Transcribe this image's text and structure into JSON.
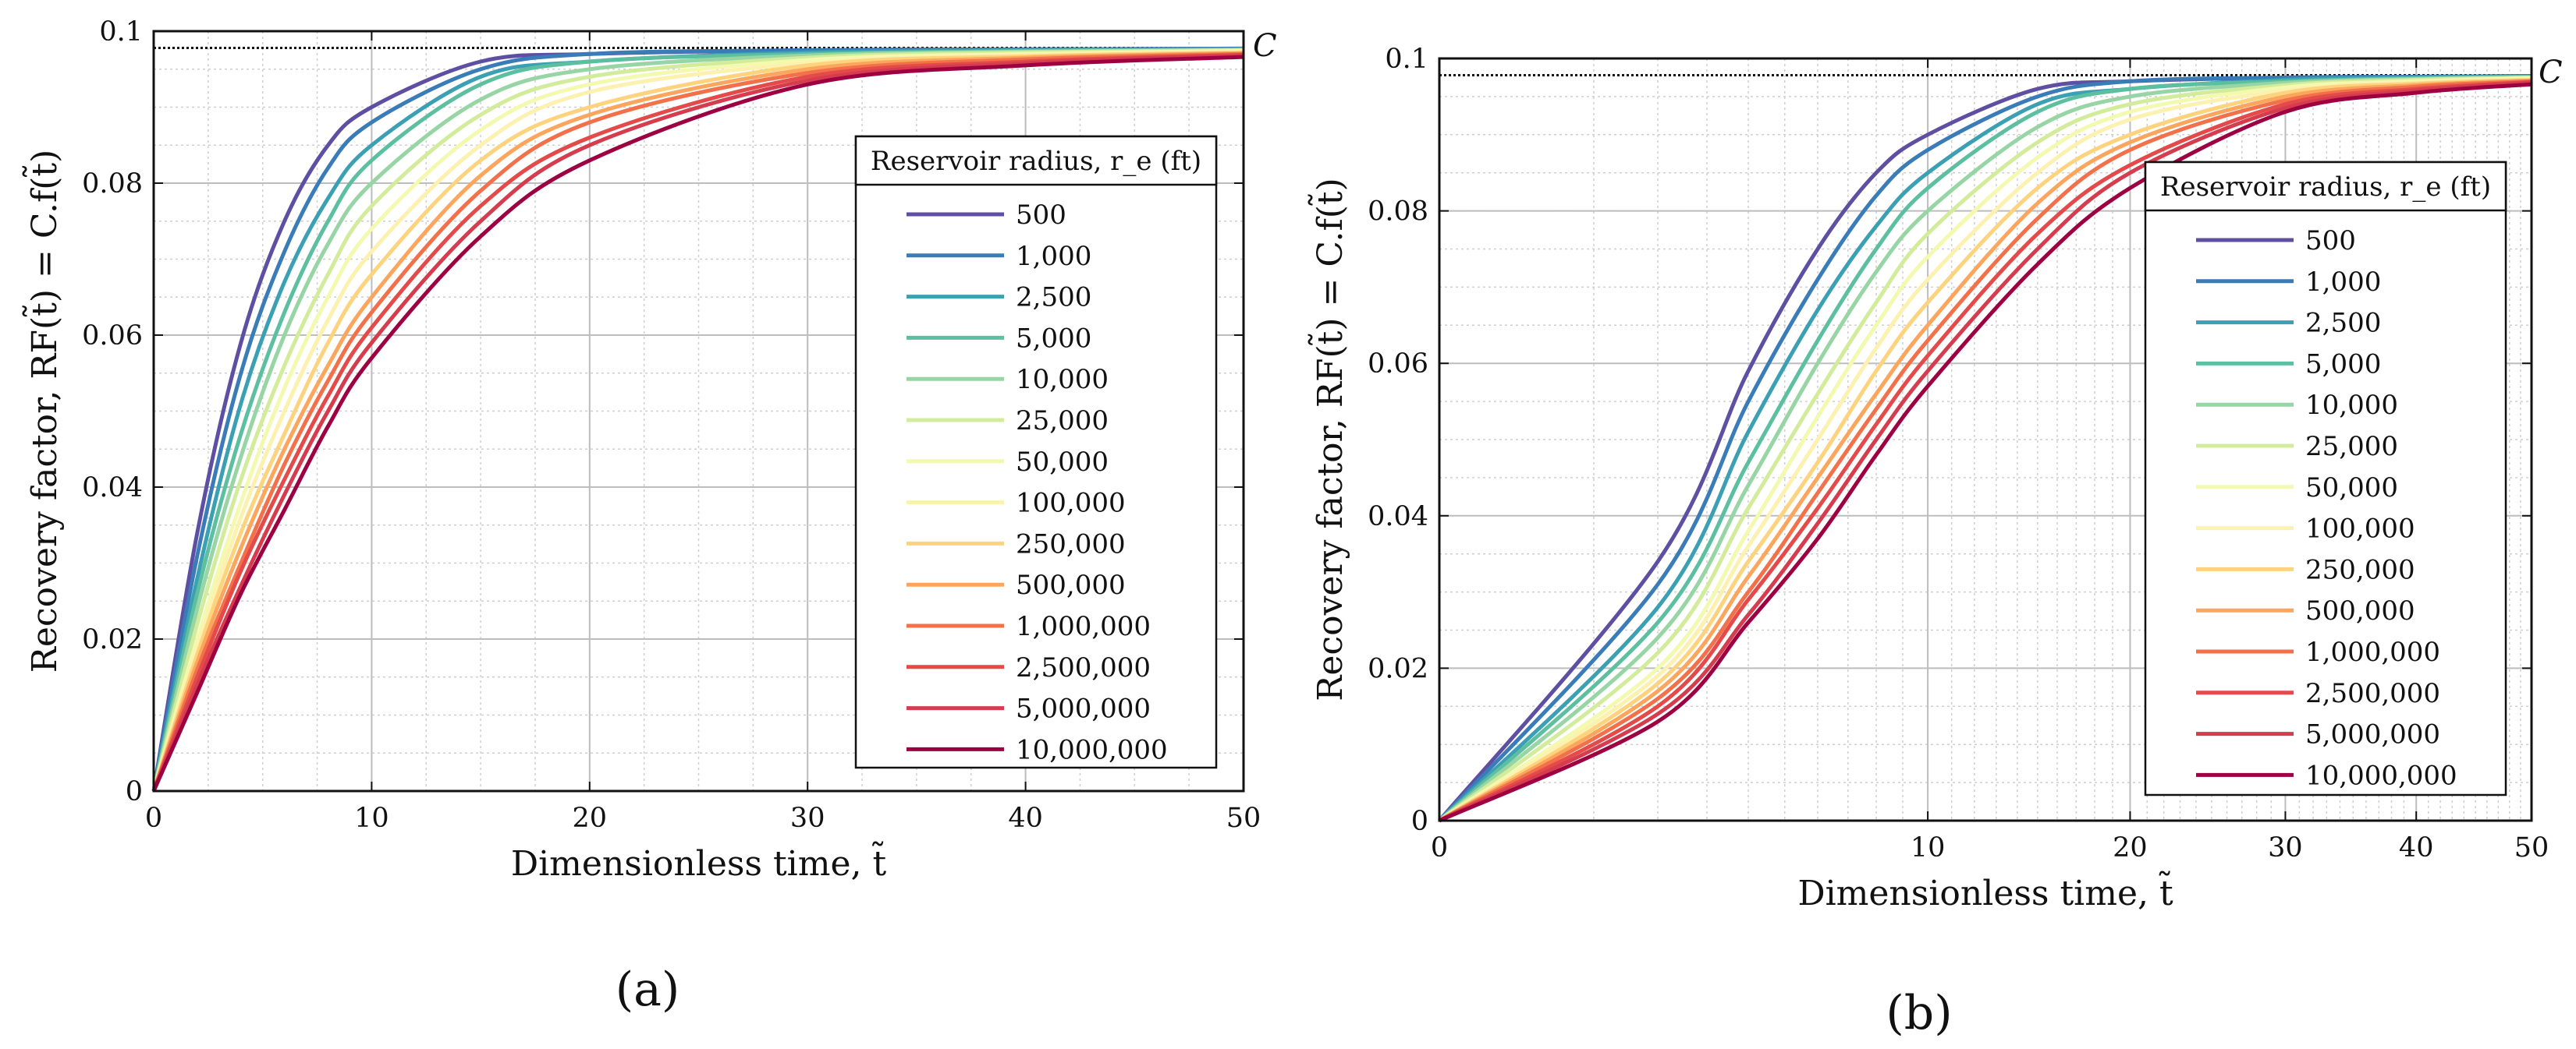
{
  "chart_data": [
    {
      "panel": "a",
      "type": "line",
      "xscale": "linear",
      "xlabel": "Dimensionless time, t̃",
      "ylabel": "Recovery factor, RF(t̃) = C.f(t̃)",
      "xlim": [
        0,
        50
      ],
      "ylim": [
        0,
        0.1
      ],
      "xticks": [
        0,
        10,
        20,
        30,
        40,
        50
      ],
      "xtick_labels": [
        "0",
        "10",
        "20",
        "30",
        "40",
        "50"
      ],
      "yticks": [
        0,
        0.02,
        0.04,
        0.06,
        0.08,
        0.1
      ],
      "ytick_labels": [
        "0",
        "0.02",
        "0.04",
        "0.06",
        "0.08",
        "0.1"
      ],
      "asymptote": {
        "label": "C",
        "value": 0.0978
      },
      "legend_title": "Reservoir radius, r_e (ft)",
      "legend_loc": "right",
      "grid": true,
      "series": [
        {
          "name": "500",
          "color": "#5e4fa2",
          "x": [
            0,
            2,
            4,
            6,
            8,
            10,
            15,
            20,
            30,
            40,
            50
          ],
          "values": [
            0,
            0.034,
            0.059,
            0.075,
            0.085,
            0.09,
            0.096,
            0.097,
            0.0975,
            0.0976,
            0.0977
          ]
        },
        {
          "name": "1,000",
          "color": "#3a7cb8",
          "x": [
            0,
            2,
            4,
            6,
            8,
            10,
            15,
            20,
            30,
            40,
            50
          ],
          "values": [
            0,
            0.031,
            0.055,
            0.071,
            0.082,
            0.088,
            0.095,
            0.097,
            0.0975,
            0.0976,
            0.0977
          ]
        },
        {
          "name": "2,500",
          "color": "#3ba0b3",
          "x": [
            0,
            2,
            4,
            6,
            8,
            10,
            15,
            20,
            30,
            40,
            50
          ],
          "values": [
            0,
            0.028,
            0.051,
            0.067,
            0.078,
            0.085,
            0.094,
            0.096,
            0.0972,
            0.0975,
            0.0976
          ]
        },
        {
          "name": "5,000",
          "color": "#5cbfa0",
          "x": [
            0,
            2,
            4,
            6,
            8,
            10,
            15,
            20,
            30,
            40,
            50
          ],
          "values": [
            0,
            0.026,
            0.047,
            0.063,
            0.075,
            0.083,
            0.093,
            0.096,
            0.097,
            0.0974,
            0.0976
          ]
        },
        {
          "name": "10,000",
          "color": "#97d5a4",
          "x": [
            0,
            2,
            4,
            6,
            8,
            10,
            15,
            20,
            30,
            40,
            50
          ],
          "values": [
            0,
            0.024,
            0.044,
            0.06,
            0.072,
            0.08,
            0.091,
            0.095,
            0.0968,
            0.0973,
            0.0975
          ]
        },
        {
          "name": "25,000",
          "color": "#d3ec9c",
          "x": [
            0,
            2,
            4,
            6,
            8,
            10,
            15,
            20,
            30,
            40,
            50
          ],
          "values": [
            0,
            0.022,
            0.041,
            0.056,
            0.068,
            0.077,
            0.089,
            0.094,
            0.0965,
            0.0972,
            0.0975
          ]
        },
        {
          "name": "50,000",
          "color": "#f4f9b0",
          "x": [
            0,
            2,
            4,
            6,
            8,
            10,
            15,
            20,
            30,
            40,
            50
          ],
          "values": [
            0,
            0.02,
            0.038,
            0.053,
            0.065,
            0.074,
            0.087,
            0.093,
            0.0962,
            0.097,
            0.0974
          ]
        },
        {
          "name": "100,000",
          "color": "#fdf1b0",
          "x": [
            0,
            2,
            4,
            6,
            8,
            10,
            15,
            20,
            30,
            40,
            50
          ],
          "values": [
            0,
            0.019,
            0.036,
            0.05,
            0.062,
            0.071,
            0.085,
            0.092,
            0.0958,
            0.0969,
            0.0973
          ]
        },
        {
          "name": "250,000",
          "color": "#fdd37e",
          "x": [
            0,
            2,
            4,
            6,
            8,
            10,
            15,
            20,
            30,
            40,
            50
          ],
          "values": [
            0,
            0.018,
            0.034,
            0.047,
            0.059,
            0.068,
            0.083,
            0.09,
            0.0955,
            0.0967,
            0.0972
          ]
        },
        {
          "name": "500,000",
          "color": "#fca55d",
          "x": [
            0,
            2,
            4,
            6,
            8,
            10,
            15,
            20,
            30,
            40,
            50
          ],
          "values": [
            0,
            0.017,
            0.032,
            0.045,
            0.056,
            0.065,
            0.081,
            0.089,
            0.095,
            0.0965,
            0.0971
          ]
        },
        {
          "name": "1,000,000",
          "color": "#f2704a",
          "x": [
            0,
            2,
            4,
            6,
            8,
            10,
            15,
            20,
            30,
            40,
            50
          ],
          "values": [
            0,
            0.016,
            0.03,
            0.043,
            0.054,
            0.063,
            0.079,
            0.088,
            0.0945,
            0.0963,
            0.097
          ]
        },
        {
          "name": "2,500,000",
          "color": "#e34a49",
          "x": [
            0,
            2,
            4,
            6,
            8,
            10,
            15,
            20,
            30,
            40,
            50
          ],
          "values": [
            0,
            0.015,
            0.029,
            0.041,
            0.052,
            0.061,
            0.077,
            0.086,
            0.094,
            0.096,
            0.0969
          ]
        },
        {
          "name": "5,000,000",
          "color": "#d53c4e",
          "x": [
            0,
            2,
            4,
            6,
            8,
            10,
            15,
            20,
            30,
            40,
            50
          ],
          "values": [
            0,
            0.014,
            0.027,
            0.039,
            0.05,
            0.059,
            0.075,
            0.085,
            0.0935,
            0.0958,
            0.0968
          ]
        },
        {
          "name": "10,000,000",
          "color": "#9e0142",
          "x": [
            0,
            2,
            4,
            6,
            8,
            10,
            15,
            20,
            30,
            40,
            50
          ],
          "values": [
            0,
            0.013,
            0.026,
            0.037,
            0.048,
            0.057,
            0.073,
            0.083,
            0.093,
            0.0955,
            0.0966
          ]
        }
      ]
    },
    {
      "panel": "b",
      "type": "line",
      "xscale": "sqrt",
      "xlabel": "Dimensionless time, t̃",
      "ylabel": "Recovery factor, RF(t̃) = C.f(t̃)",
      "xlim": [
        0,
        50
      ],
      "ylim": [
        0,
        0.1
      ],
      "xticks": [
        0,
        10,
        20,
        30,
        40,
        50
      ],
      "xtick_labels": [
        "0",
        "10",
        "20",
        "30",
        "40",
        "50"
      ],
      "yticks": [
        0,
        0.02,
        0.04,
        0.06,
        0.08,
        0.1
      ],
      "ytick_labels": [
        "0",
        "0.02",
        "0.04",
        "0.06",
        "0.08",
        "0.1"
      ],
      "asymptote": {
        "label": "C",
        "value": 0.0978
      },
      "legend_title": "Reservoir radius, r_e (ft)",
      "legend_loc": "right",
      "grid": true,
      "series": [
        {
          "name": "500",
          "color": "#5e4fa2",
          "x": [
            0,
            2,
            4,
            6,
            8,
            10,
            15,
            20,
            30,
            40,
            50
          ],
          "values": [
            0,
            0.034,
            0.059,
            0.075,
            0.085,
            0.09,
            0.096,
            0.097,
            0.0975,
            0.0976,
            0.0977
          ]
        },
        {
          "name": "1,000",
          "color": "#3a7cb8",
          "x": [
            0,
            2,
            4,
            6,
            8,
            10,
            15,
            20,
            30,
            40,
            50
          ],
          "values": [
            0,
            0.031,
            0.055,
            0.071,
            0.082,
            0.088,
            0.095,
            0.097,
            0.0975,
            0.0976,
            0.0977
          ]
        },
        {
          "name": "2,500",
          "color": "#3ba0b3",
          "x": [
            0,
            2,
            4,
            6,
            8,
            10,
            15,
            20,
            30,
            40,
            50
          ],
          "values": [
            0,
            0.028,
            0.051,
            0.067,
            0.078,
            0.085,
            0.094,
            0.096,
            0.0972,
            0.0975,
            0.0976
          ]
        },
        {
          "name": "5,000",
          "color": "#5cbfa0",
          "x": [
            0,
            2,
            4,
            6,
            8,
            10,
            15,
            20,
            30,
            40,
            50
          ],
          "values": [
            0,
            0.026,
            0.047,
            0.063,
            0.075,
            0.083,
            0.093,
            0.096,
            0.097,
            0.0974,
            0.0976
          ]
        },
        {
          "name": "10,000",
          "color": "#97d5a4",
          "x": [
            0,
            2,
            4,
            6,
            8,
            10,
            15,
            20,
            30,
            40,
            50
          ],
          "values": [
            0,
            0.024,
            0.044,
            0.06,
            0.072,
            0.08,
            0.091,
            0.095,
            0.0968,
            0.0973,
            0.0975
          ]
        },
        {
          "name": "25,000",
          "color": "#d3ec9c",
          "x": [
            0,
            2,
            4,
            6,
            8,
            10,
            15,
            20,
            30,
            40,
            50
          ],
          "values": [
            0,
            0.022,
            0.041,
            0.056,
            0.068,
            0.077,
            0.089,
            0.094,
            0.0965,
            0.0972,
            0.0975
          ]
        },
        {
          "name": "50,000",
          "color": "#f4f9b0",
          "x": [
            0,
            2,
            4,
            6,
            8,
            10,
            15,
            20,
            30,
            40,
            50
          ],
          "values": [
            0,
            0.02,
            0.038,
            0.053,
            0.065,
            0.074,
            0.087,
            0.093,
            0.0962,
            0.097,
            0.0974
          ]
        },
        {
          "name": "100,000",
          "color": "#fdf1b0",
          "x": [
            0,
            2,
            4,
            6,
            8,
            10,
            15,
            20,
            30,
            40,
            50
          ],
          "values": [
            0,
            0.019,
            0.036,
            0.05,
            0.062,
            0.071,
            0.085,
            0.092,
            0.0958,
            0.0969,
            0.0973
          ]
        },
        {
          "name": "250,000",
          "color": "#fdd37e",
          "x": [
            0,
            2,
            4,
            6,
            8,
            10,
            15,
            20,
            30,
            40,
            50
          ],
          "values": [
            0,
            0.018,
            0.034,
            0.047,
            0.059,
            0.068,
            0.083,
            0.09,
            0.0955,
            0.0967,
            0.0972
          ]
        },
        {
          "name": "500,000",
          "color": "#fca55d",
          "x": [
            0,
            2,
            4,
            6,
            8,
            10,
            15,
            20,
            30,
            40,
            50
          ],
          "values": [
            0,
            0.017,
            0.032,
            0.045,
            0.056,
            0.065,
            0.081,
            0.089,
            0.095,
            0.0965,
            0.0971
          ]
        },
        {
          "name": "1,000,000",
          "color": "#f2704a",
          "x": [
            0,
            2,
            4,
            6,
            8,
            10,
            15,
            20,
            30,
            40,
            50
          ],
          "values": [
            0,
            0.016,
            0.03,
            0.043,
            0.054,
            0.063,
            0.079,
            0.088,
            0.0945,
            0.0963,
            0.097
          ]
        },
        {
          "name": "2,500,000",
          "color": "#e34a49",
          "x": [
            0,
            2,
            4,
            6,
            8,
            10,
            15,
            20,
            30,
            40,
            50
          ],
          "values": [
            0,
            0.015,
            0.029,
            0.041,
            0.052,
            0.061,
            0.077,
            0.086,
            0.094,
            0.096,
            0.0969
          ]
        },
        {
          "name": "5,000,000",
          "color": "#d53c4e",
          "x": [
            0,
            2,
            4,
            6,
            8,
            10,
            15,
            20,
            30,
            40,
            50
          ],
          "values": [
            0,
            0.014,
            0.027,
            0.039,
            0.05,
            0.059,
            0.075,
            0.085,
            0.0935,
            0.0958,
            0.0968
          ]
        },
        {
          "name": "10,000,000",
          "color": "#9e0142",
          "x": [
            0,
            2,
            4,
            6,
            8,
            10,
            15,
            20,
            30,
            40,
            50
          ],
          "values": [
            0,
            0.013,
            0.026,
            0.037,
            0.048,
            0.057,
            0.073,
            0.083,
            0.093,
            0.0955,
            0.0966
          ]
        }
      ]
    }
  ],
  "panel_labels": [
    "(a)",
    "(b)"
  ]
}
